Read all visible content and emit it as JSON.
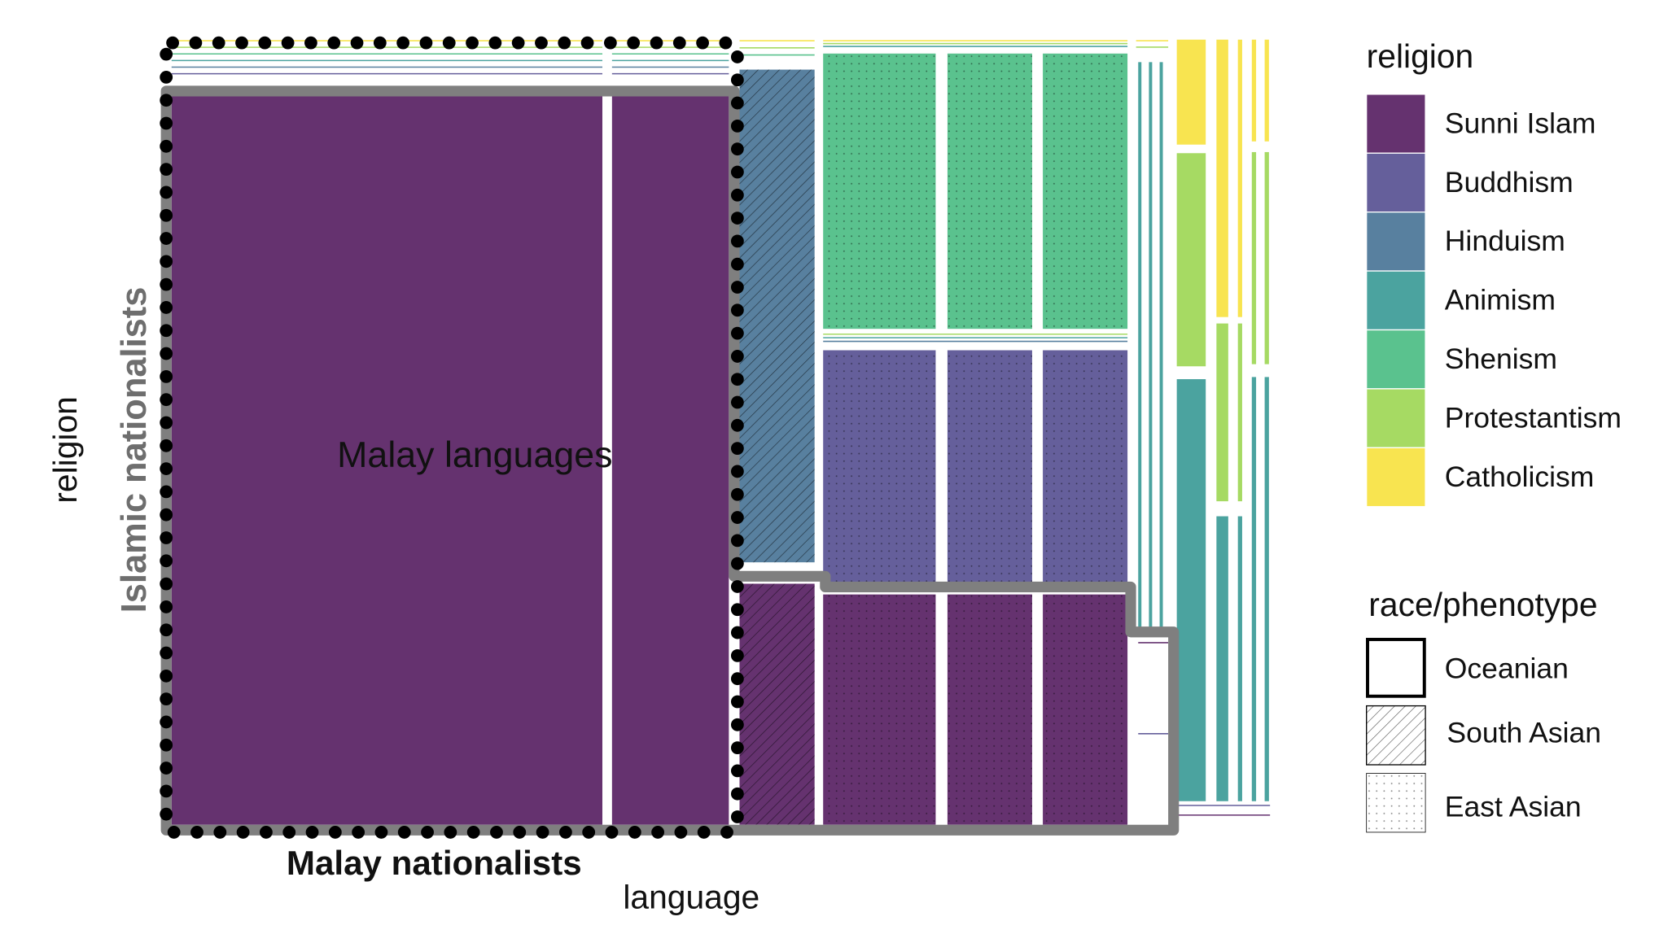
{
  "diagram": {
    "labels": {
      "cell": "Malay languages",
      "y_group": "Islamic nationalists",
      "y_axis": "religion",
      "x_group": "Malay nationalists",
      "x_axis": "language"
    },
    "legend_religion": {
      "title": "religion",
      "items": [
        {
          "label": "Sunni Islam",
          "color": "#65326f"
        },
        {
          "label": "Buddhism",
          "color": "#655f9b"
        },
        {
          "label": "Hinduism",
          "color": "#58809f"
        },
        {
          "label": "Animism",
          "color": "#4ba39f"
        },
        {
          "label": "Shenism",
          "color": "#5ac28e"
        },
        {
          "label": "Protestantism",
          "color": "#a6da63"
        },
        {
          "label": "Catholicism",
          "color": "#f8e450"
        }
      ]
    },
    "legend_race": {
      "title": "race/phenotype",
      "items": [
        {
          "label": "Oceanian"
        },
        {
          "label": "South Asian"
        },
        {
          "label": "East Asian"
        }
      ]
    }
  }
}
